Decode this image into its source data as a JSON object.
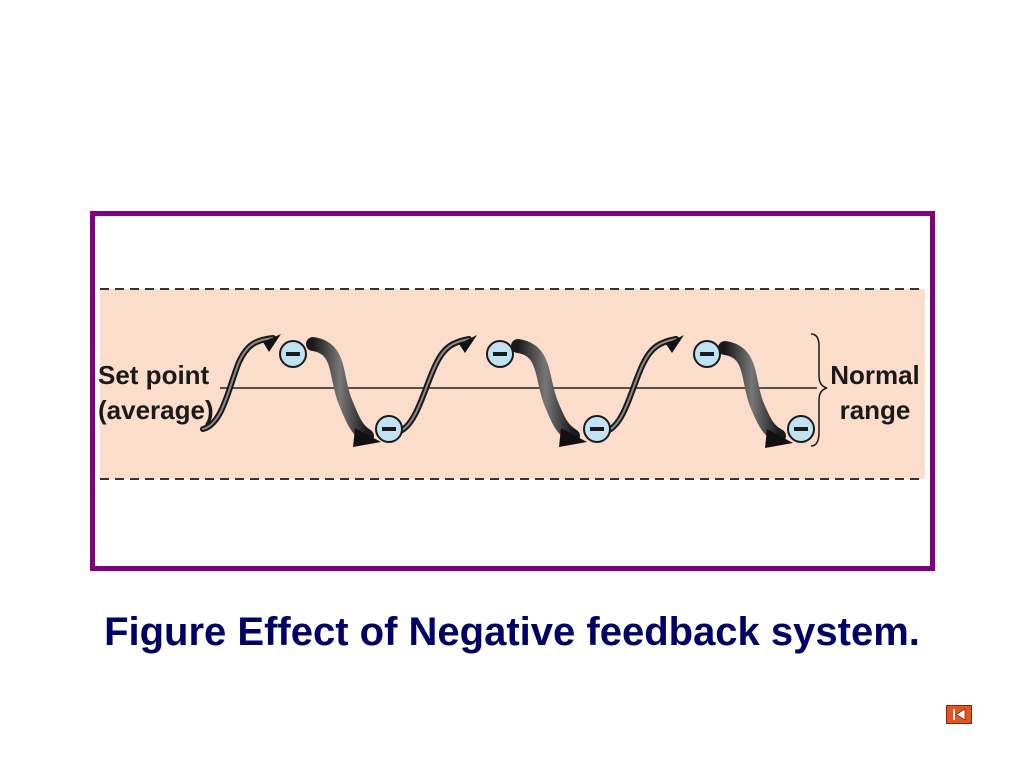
{
  "diagram": {
    "left_label_line1": "Set point",
    "left_label_line2": "(average)",
    "right_label_line1": "Normal",
    "right_label_line2": "range",
    "band_color": "#fcdccb",
    "frame_color": "#800080",
    "feedback_marker_symbol": "−",
    "feedback_marker_color": "#bfe3f3"
  },
  "caption": {
    "text": "Figure Effect of Negative feedback system."
  },
  "navigation": {
    "back_icon": "skip-back-icon",
    "button_color": "#e8531f"
  }
}
